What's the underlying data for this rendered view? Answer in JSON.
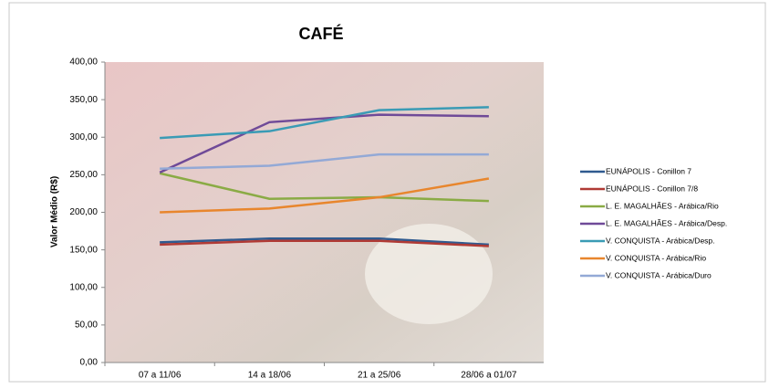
{
  "chart_data": {
    "type": "line",
    "title": "CAFÉ",
    "y_label": "Valor Médio (R$)",
    "categories": [
      "07 a 11/06",
      "14 a 18/06",
      "21 a 25/06",
      "28/06 a 01/07"
    ],
    "series": [
      {
        "name": "EUNÁPOLIS - Conillon 7",
        "color": "#2f5a8f",
        "values": [
          160,
          165,
          165,
          157
        ]
      },
      {
        "name": "EUNÁPOLIS - Conillon 7/8",
        "color": "#b03a35",
        "values": [
          157,
          162,
          162,
          155
        ]
      },
      {
        "name": "L. E. MAGALHÃES - Arábica/Rio",
        "color": "#8aab45",
        "values": [
          252,
          218,
          220,
          215
        ]
      },
      {
        "name": "L. E. MAGALHÃES - Arábica/Desp.",
        "color": "#6f4a98",
        "values": [
          253,
          320,
          330,
          328
        ]
      },
      {
        "name": "V. CONQUISTA - Arábica/Desp.",
        "color": "#3a9bb5",
        "values": [
          299,
          308,
          336,
          340
        ]
      },
      {
        "name": "V. CONQUISTA - Arábica/Rio",
        "color": "#e8862d",
        "values": [
          200,
          205,
          220,
          245
        ]
      },
      {
        "name": "V. CONQUISTA - Arábica/Duro",
        "color": "#93a9d6",
        "values": [
          258,
          262,
          277,
          277
        ]
      }
    ],
    "ylim": [
      0,
      400
    ],
    "yticks": [
      {
        "value": 0,
        "label": "0,00"
      },
      {
        "value": 50,
        "label": "50,00"
      },
      {
        "value": 100,
        "label": "100,00"
      },
      {
        "value": 150,
        "label": "150,00"
      },
      {
        "value": 200,
        "label": "200,00"
      },
      {
        "value": 250,
        "label": "250,00"
      },
      {
        "value": 300,
        "label": "300,00"
      },
      {
        "value": 350,
        "label": "350,00"
      },
      {
        "value": 400,
        "label": "400,00"
      }
    ],
    "legend": "right"
  }
}
